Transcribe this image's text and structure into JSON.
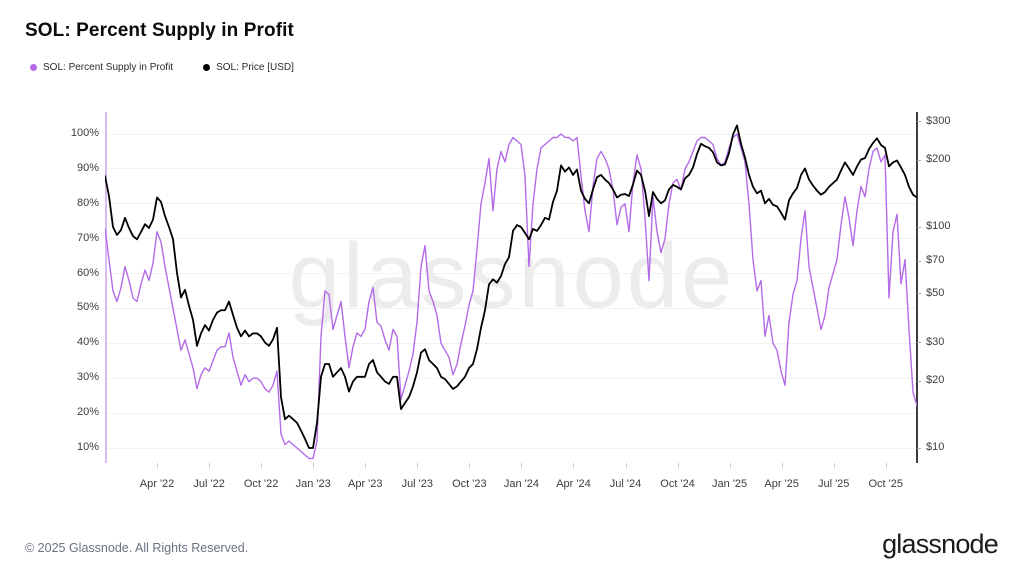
{
  "title": "SOL: Percent Supply in Profit",
  "watermark": "glassnode",
  "footer": {
    "copyright": "© 2025 Glassnode. All Rights Reserved.",
    "brand": "glassnode"
  },
  "legend": [
    {
      "label": "SOL: Percent Supply in Profit",
      "color": "#b46be8"
    },
    {
      "label": "SOL: Price [USD]",
      "color": "#000000"
    }
  ],
  "chart_data": {
    "type": "line",
    "title": "SOL: Percent Supply in Profit",
    "x_range": [
      "Jan 2022",
      "Nov 2025"
    ],
    "x_resolution": "weekly",
    "x_total_months": 46.8,
    "grid": "horizontal-only",
    "x_ticks": [
      {
        "label": "Apr '22",
        "month_index": 3
      },
      {
        "label": "Jul '22",
        "month_index": 6
      },
      {
        "label": "Oct '22",
        "month_index": 9
      },
      {
        "label": "Jan '23",
        "month_index": 12
      },
      {
        "label": "Apr '23",
        "month_index": 15
      },
      {
        "label": "Jul '23",
        "month_index": 18
      },
      {
        "label": "Oct '23",
        "month_index": 21
      },
      {
        "label": "Jan '24",
        "month_index": 24
      },
      {
        "label": "Apr '24",
        "month_index": 27
      },
      {
        "label": "Jul '24",
        "month_index": 30
      },
      {
        "label": "Oct '24",
        "month_index": 33
      },
      {
        "label": "Jan '25",
        "month_index": 36
      },
      {
        "label": "Apr '25",
        "month_index": 39
      },
      {
        "label": "Jul '25",
        "month_index": 42
      },
      {
        "label": "Oct '25",
        "month_index": 45
      }
    ],
    "left_axis": {
      "unit": "%",
      "scale": "linear",
      "range": [
        10,
        100
      ],
      "ticks": [
        {
          "value": 100,
          "label": "100%"
        },
        {
          "value": 90,
          "label": "90%"
        },
        {
          "value": 80,
          "label": "80%"
        },
        {
          "value": 70,
          "label": "70%"
        },
        {
          "value": 60,
          "label": "60%"
        },
        {
          "value": 50,
          "label": "50%"
        },
        {
          "value": 40,
          "label": "40%"
        },
        {
          "value": 30,
          "label": "30%"
        },
        {
          "value": 20,
          "label": "20%"
        },
        {
          "value": 10,
          "label": "10%"
        }
      ]
    },
    "right_axis": {
      "unit": "USD",
      "scale": "log",
      "range": [
        10,
        300
      ],
      "ticks": [
        {
          "value": 300,
          "label": "$300"
        },
        {
          "value": 200,
          "label": "$200"
        },
        {
          "value": 100,
          "label": "$100"
        },
        {
          "value": 70,
          "label": "$70"
        },
        {
          "value": 50,
          "label": "$50"
        },
        {
          "value": 30,
          "label": "$30"
        },
        {
          "value": 20,
          "label": "$20"
        },
        {
          "value": 10,
          "label": "$10"
        }
      ]
    },
    "series": [
      {
        "name": "SOL: Percent Supply in Profit",
        "axis": "left",
        "unit": "%",
        "color": "#b46be8",
        "values": [
          73,
          64,
          55,
          52,
          56,
          62,
          58,
          53,
          52,
          57,
          61,
          58,
          63,
          72,
          69,
          62,
          56,
          50,
          44,
          38,
          41,
          37,
          33,
          27,
          31,
          33,
          32,
          35,
          38,
          39,
          39,
          43,
          36,
          32,
          28,
          31,
          29,
          30,
          30,
          29,
          27,
          26,
          28,
          32,
          14,
          11,
          12,
          11,
          10,
          9,
          8,
          7,
          7,
          12,
          42,
          55,
          54,
          44,
          48,
          52,
          42,
          33,
          39,
          43,
          42,
          44,
          52,
          56,
          46,
          45,
          41,
          38,
          44,
          42,
          24,
          28,
          32,
          37,
          46,
          62,
          68,
          55,
          52,
          48,
          40,
          38,
          36,
          31,
          34,
          40,
          45,
          51,
          55,
          67,
          80,
          86,
          93,
          78,
          90,
          95,
          92,
          97,
          99,
          98,
          97,
          88,
          62,
          80,
          90,
          96,
          97,
          98,
          99,
          99,
          100,
          99,
          99,
          98,
          99,
          88,
          78,
          72,
          85,
          93,
          95,
          93,
          90,
          84,
          74,
          79,
          80,
          72,
          86,
          94,
          90,
          76,
          58,
          82,
          72,
          66,
          70,
          80,
          86,
          87,
          84,
          90,
          92,
          95,
          98,
          99,
          99,
          98,
          97,
          93,
          91,
          92,
          96,
          99,
          100,
          96,
          92,
          80,
          64,
          55,
          58,
          42,
          48,
          40,
          38,
          32,
          28,
          46,
          54,
          58,
          70,
          78,
          62,
          56,
          50,
          44,
          48,
          56,
          60,
          64,
          74,
          82,
          76,
          68,
          78,
          85,
          82,
          90,
          95,
          96,
          92,
          94,
          53,
          72,
          77,
          57,
          64,
          44,
          26,
          22
        ]
      },
      {
        "name": "SOL: Price [USD]",
        "axis": "right",
        "unit": "USD",
        "color": "#000000",
        "values": [
          170,
          138,
          100,
          92,
          97,
          110,
          99,
          91,
          88,
          95,
          103,
          99,
          108,
          136,
          130,
          112,
          100,
          88,
          62,
          48,
          52,
          44,
          38,
          29,
          33,
          36,
          34,
          38,
          41,
          42,
          42,
          46,
          40,
          35,
          32,
          34,
          32,
          33,
          33,
          32,
          30,
          29,
          31,
          35,
          17,
          13.5,
          14,
          13.5,
          13,
          12,
          11,
          10,
          10,
          13,
          21,
          24,
          24,
          21,
          22,
          23,
          21,
          18,
          20,
          21,
          21,
          21,
          24,
          25,
          22,
          21,
          20,
          19.5,
          21,
          21,
          15,
          16,
          17,
          19,
          22,
          27,
          28,
          25,
          24,
          23,
          21,
          20.5,
          19.5,
          18.5,
          19,
          20,
          21,
          23,
          24,
          28,
          35,
          42,
          55,
          58,
          56,
          60,
          68,
          73,
          96,
          102,
          100,
          94,
          88,
          98,
          96,
          102,
          110,
          108,
          130,
          146,
          190,
          178,
          186,
          172,
          182,
          146,
          134,
          128,
          148,
          168,
          172,
          164,
          158,
          148,
          136,
          140,
          141,
          138,
          156,
          180,
          172,
          146,
          112,
          144,
          134,
          128,
          132,
          148,
          155,
          152,
          148,
          166,
          172,
          186,
          214,
          238,
          232,
          228,
          218,
          196,
          190,
          192,
          216,
          262,
          288,
          238,
          206,
          172,
          152,
          142,
          146,
          128,
          134,
          126,
          124,
          116,
          108,
          132,
          142,
          150,
          172,
          184,
          164,
          154,
          146,
          140,
          144,
          152,
          158,
          164,
          180,
          196,
          184,
          172,
          188,
          202,
          205,
          225,
          240,
          252,
          235,
          228,
          188,
          196,
          200,
          186,
          172,
          152,
          140,
          136
        ]
      }
    ]
  }
}
